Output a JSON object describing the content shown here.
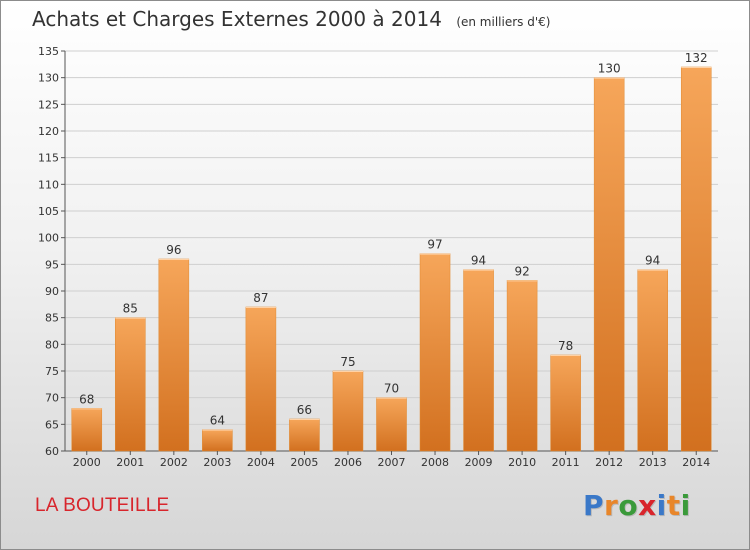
{
  "header": {
    "title": "Achats et Charges Externes 2000 à 2014",
    "subtitle": "(en milliers d'€)"
  },
  "footer": {
    "city": "LA BOUTEILLE",
    "logo_letters": [
      "P",
      "r",
      "o",
      "x",
      "i",
      "t",
      "i"
    ],
    "logo_colors": [
      "#3a78c8",
      "#e8862a",
      "#3a9a3a",
      "#d8252c",
      "#3a78c8",
      "#e8862a",
      "#3a9a3a"
    ]
  },
  "colors": {
    "bar_top": "#f6a65a",
    "bar_bottom": "#d2701f",
    "grid": "#cfcfcf",
    "axis": "#555555"
  },
  "chart_data": {
    "type": "bar",
    "title": "Achats et Charges Externes 2000 à 2014",
    "subtitle": "(en milliers d'€)",
    "categories": [
      "2000",
      "2001",
      "2002",
      "2003",
      "2004",
      "2005",
      "2006",
      "2007",
      "2008",
      "2009",
      "2010",
      "2011",
      "2012",
      "2013",
      "2014"
    ],
    "values": [
      68,
      85,
      96,
      64,
      87,
      66,
      75,
      70,
      97,
      94,
      92,
      78,
      130,
      94,
      132
    ],
    "ylim": [
      60,
      135
    ],
    "yticks": [
      60,
      65,
      70,
      75,
      80,
      85,
      90,
      95,
      100,
      105,
      110,
      115,
      120,
      125,
      130,
      135
    ],
    "grid": true,
    "xlabel": "",
    "ylabel": ""
  }
}
